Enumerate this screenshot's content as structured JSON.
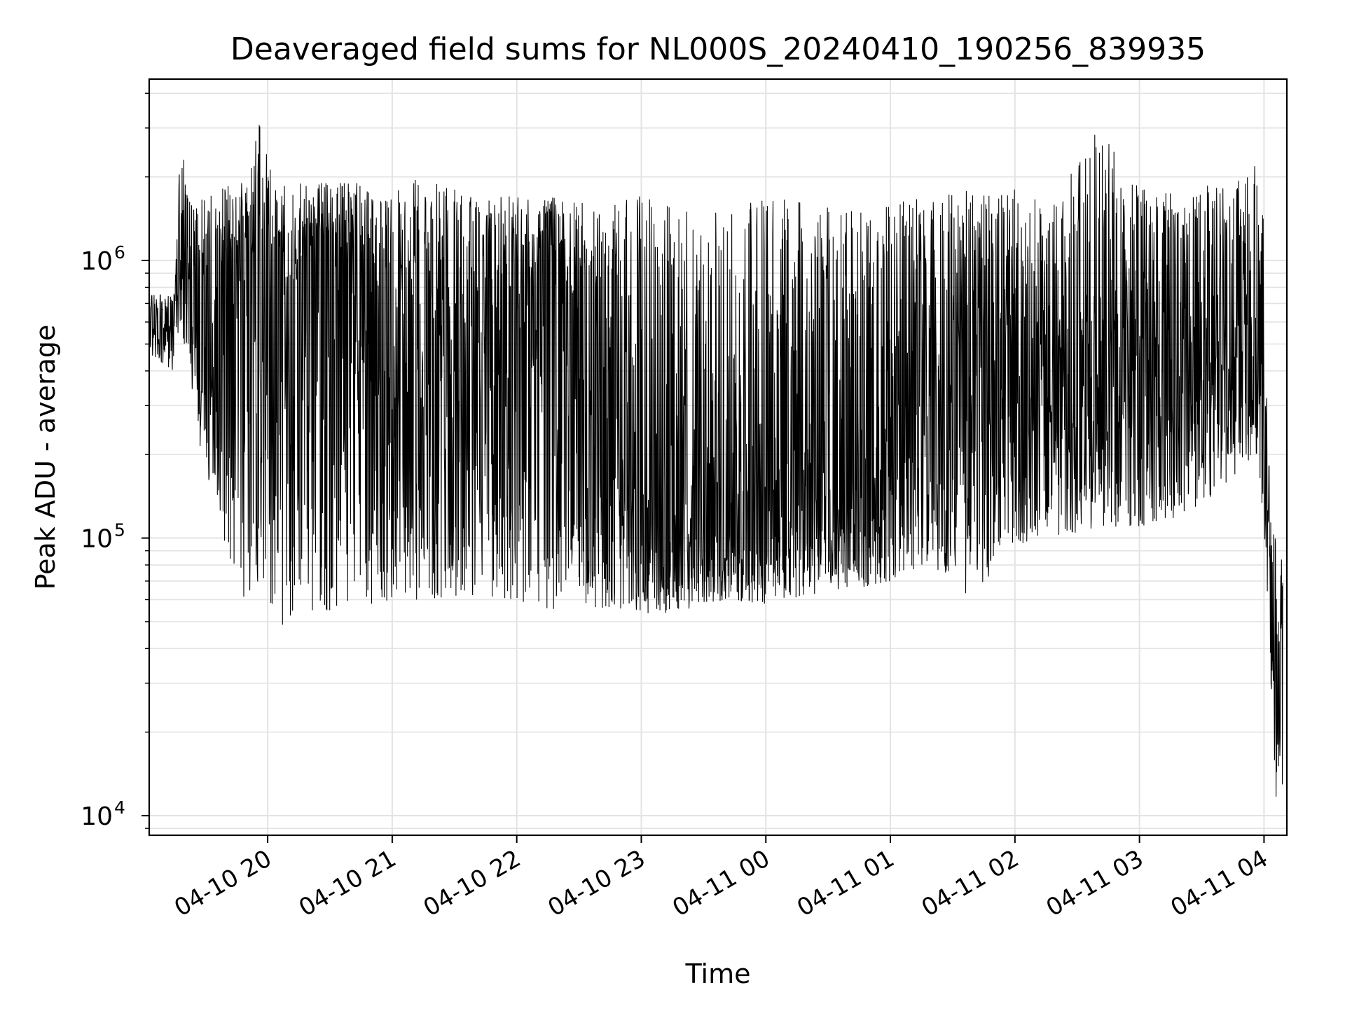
{
  "chart_data": {
    "type": "line",
    "title": "Deaveraged field sums for NL000S_20240410_190256_839935",
    "xlabel": "Time",
    "ylabel": "Peak ADU - average",
    "yscale": "log",
    "ylim": [
      8500,
      4500000
    ],
    "xlim": [
      "2024-04-10T19:02:56",
      "2024-04-11T04:11:00"
    ],
    "x_ticks": [
      "04-10 20",
      "04-10 21",
      "04-10 22",
      "04-10 23",
      "04-11 00",
      "04-11 01",
      "04-11 02",
      "04-11 03",
      "04-11 04"
    ],
    "y_ticks": [
      {
        "base": "10",
        "exp": "4",
        "value": 10000
      },
      {
        "base": "10",
        "exp": "5",
        "value": 100000
      },
      {
        "base": "10",
        "exp": "6",
        "value": 1000000
      }
    ],
    "grid": true,
    "line_color": "#000000",
    "series": [
      {
        "x": [
          "2024-04-10T19:03",
          "2024-04-10T19:10",
          "2024-04-10T19:15",
          "2024-04-10T19:18",
          "2024-04-10T19:25",
          "2024-04-10T19:30",
          "2024-04-10T19:33",
          "2024-04-10T19:40",
          "2024-04-10T19:45",
          "2024-04-10T19:50",
          "2024-04-10T19:55",
          "2024-04-10T20:00",
          "2024-04-10T20:05",
          "2024-04-10T20:10",
          "2024-04-10T20:20",
          "2024-04-10T20:30",
          "2024-04-10T20:40",
          "2024-04-10T20:50",
          "2024-04-10T21:00",
          "2024-04-10T21:15",
          "2024-04-10T21:30",
          "2024-04-10T21:45",
          "2024-04-10T22:00",
          "2024-04-10T22:15",
          "2024-04-10T22:30",
          "2024-04-10T22:45",
          "2024-04-10T23:00",
          "2024-04-10T23:20",
          "2024-04-10T23:40",
          "2024-04-11T00:00",
          "2024-04-11T00:20",
          "2024-04-11T00:40",
          "2024-04-11T01:00",
          "2024-04-11T01:20",
          "2024-04-11T01:40",
          "2024-04-11T02:00",
          "2024-04-11T02:20",
          "2024-04-11T02:40",
          "2024-04-11T03:00",
          "2024-04-11T03:20",
          "2024-04-11T03:40",
          "2024-04-11T03:55",
          "2024-04-11T04:00",
          "2024-04-11T04:03",
          "2024-04-11T04:06",
          "2024-04-11T04:09"
        ],
        "y": [
          600000,
          520000,
          620000,
          1200000,
          500000,
          650000,
          350000,
          900000,
          1000000,
          1100000,
          1000000,
          1100000,
          1000000,
          600000,
          1000000,
          800000,
          700000,
          600000,
          500000,
          600000,
          400000,
          700000,
          500000,
          900000,
          400000,
          200000,
          150000,
          130000,
          120000,
          110000,
          150000,
          170000,
          180000,
          250000,
          450000,
          400000,
          350000,
          380000,
          420000,
          480000,
          500000,
          520000,
          300000,
          80000,
          20000,
          30000
        ],
        "min": [
          460000,
          420000,
          400000,
          600000,
          300000,
          150000,
          160000,
          90000,
          65000,
          60000,
          60000,
          60000,
          45000,
          50000,
          55000,
          55000,
          58000,
          58000,
          60000,
          60000,
          62000,
          62000,
          60000,
          55000,
          58000,
          55000,
          52000,
          55000,
          60000,
          58000,
          60000,
          65000,
          70000,
          80000,
          60000,
          95000,
          100000,
          110000,
          110000,
          120000,
          150000,
          200000,
          110000,
          30000,
          11000,
          12000
        ],
        "max": [
          750000,
          760000,
          760000,
          2600000,
          1500000,
          1800000,
          1700000,
          1850000,
          1900000,
          1900000,
          3300000,
          2500000,
          1850000,
          1900000,
          1900000,
          1900000,
          1900000,
          1900000,
          1950000,
          1950000,
          1800000,
          1700000,
          1700000,
          1700000,
          1600000,
          1700000,
          1700000,
          1500000,
          1500000,
          1700000,
          1600000,
          1500000,
          1600000,
          1700000,
          1800000,
          1800000,
          1700000,
          3000000,
          1800000,
          1800000,
          1900000,
          2300000,
          1400000,
          120000,
          100000,
          80000
        ]
      }
    ]
  }
}
